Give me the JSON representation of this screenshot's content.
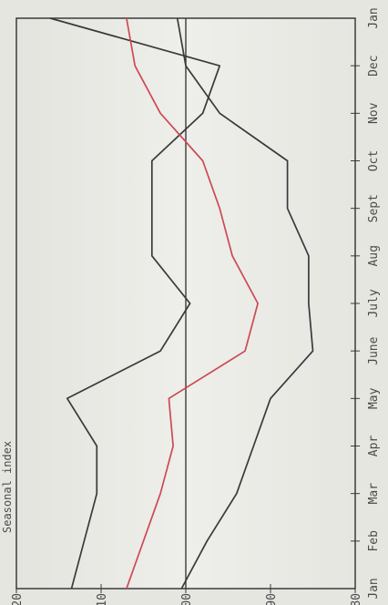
{
  "chart_data": {
    "type": "line",
    "orientation": "rotated-90-ccw",
    "ylabel": "Seasonal index",
    "ylim": [
      80,
      120
    ],
    "y_ticks": [
      "120",
      "110",
      "100",
      "90",
      "80"
    ],
    "categories": [
      "Jan",
      "Feb",
      "Mar",
      "Apr",
      "May",
      "June",
      "July",
      "Aug",
      "Sept",
      "Oct",
      "Nov",
      "Dec",
      "Jan"
    ],
    "reference_line": 100,
    "series": [
      {
        "color": "#3a3a3a",
        "values": [
          113.5,
          112,
          110.5,
          110.5,
          114,
          103,
          99.5,
          104,
          104,
          104,
          98,
          96,
          116
        ]
      },
      {
        "color": "#cc4a55",
        "values": [
          107,
          105,
          103,
          101.5,
          102,
          93,
          91.5,
          94.5,
          96,
          98,
          103,
          106,
          107
        ]
      },
      {
        "color": "#3a3a3a",
        "values": [
          100.5,
          97.5,
          94,
          92,
          90,
          85,
          85.5,
          85.5,
          88,
          88,
          96,
          100,
          101
        ]
      }
    ]
  }
}
